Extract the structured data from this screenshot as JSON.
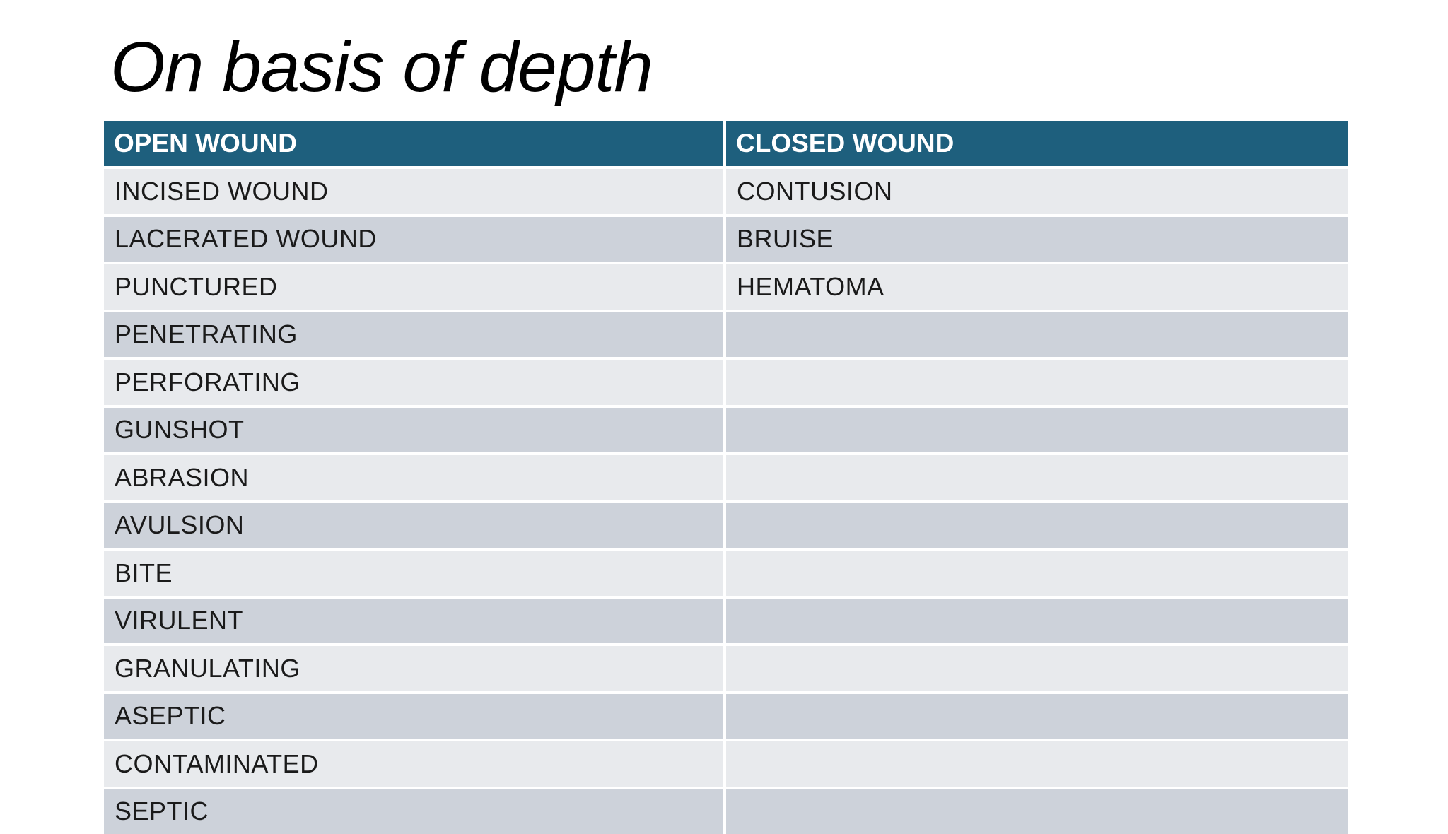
{
  "slide": {
    "title": "On basis of depth"
  },
  "table": {
    "columns": {
      "open": "OPEN WOUND",
      "closed": "CLOSED WOUND"
    },
    "rows": [
      [
        "INCISED WOUND",
        "CONTUSION"
      ],
      [
        "LACERATED WOUND",
        "BRUISE"
      ],
      [
        "PUNCTURED",
        "HEMATOMA"
      ],
      [
        "PENETRATING",
        ""
      ],
      [
        "PERFORATING",
        ""
      ],
      [
        "GUNSHOT",
        ""
      ],
      [
        "ABRASION",
        ""
      ],
      [
        "AVULSION",
        ""
      ],
      [
        "BITE",
        ""
      ],
      [
        "VIRULENT",
        ""
      ],
      [
        "GRANULATING",
        ""
      ],
      [
        "ASEPTIC",
        ""
      ],
      [
        "CONTAMINATED",
        ""
      ],
      [
        "SEPTIC",
        ""
      ]
    ],
    "colors": {
      "header_bg": "#1E5F7D",
      "header_text": "#FFFFFF",
      "row_dark": "#CDD2DA",
      "row_light": "#E8EAED",
      "body_text": "#1A1A1A"
    }
  }
}
